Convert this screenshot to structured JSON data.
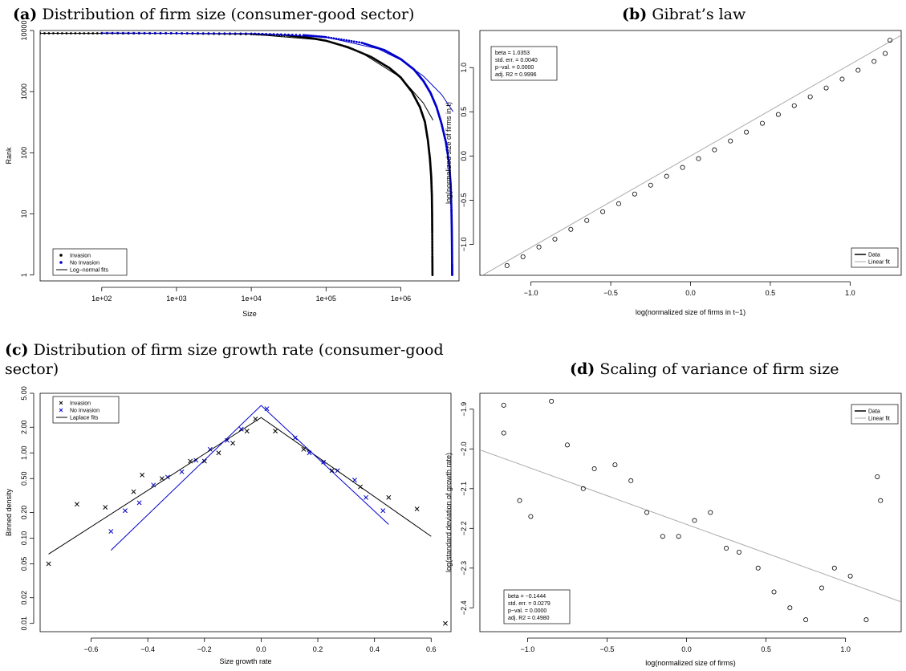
{
  "panels": [
    {
      "tag": "(a)",
      "caption": "Distribution of firm size (consumer-good sector)"
    },
    {
      "tag": "(b)",
      "caption": "Gibrat’s law"
    },
    {
      "tag": "(c)",
      "caption": "Distribution of firm size growth rate (consumer-good sector)"
    },
    {
      "tag": "(d)",
      "caption": "Scaling of variance of firm size"
    }
  ],
  "colors": {
    "invasion": "#000000",
    "no_invasion": "#0000cc",
    "linear_fit": "#aaaaaa"
  },
  "chart_data": [
    {
      "id": "a",
      "type": "scatter",
      "xlabel": "Size",
      "ylabel": "Rank",
      "xscale": "log",
      "yscale": "log",
      "xlim": [
        15,
        6000000
      ],
      "ylim": [
        0.8,
        10000
      ],
      "xticks": [
        100,
        1000,
        10000,
        100000,
        1000000
      ],
      "xtick_labels": [
        "1e+02",
        "1e+03",
        "1e+04",
        "1e+05",
        "1e+06"
      ],
      "yticks": [
        1,
        10,
        100,
        1000,
        10000
      ],
      "ytick_labels": [
        "1",
        "10",
        "100",
        "1000",
        "10000"
      ],
      "legend": {
        "position": "bottom-left",
        "entries": [
          "Invasion",
          "No Invasion",
          "Log−normal fits"
        ]
      },
      "series": [
        {
          "name": "Invasion",
          "color": "#000000",
          "marker": "dot",
          "x": [
            15,
            100,
            1000,
            10000,
            30000,
            60000,
            100000,
            200000,
            400000,
            700000,
            1000000,
            1400000,
            1800000,
            2100000,
            2300000,
            2450000,
            2550000,
            2600000,
            2620000,
            2630000,
            2640000,
            2650000
          ],
          "y": [
            9000,
            8990,
            8950,
            8700,
            8300,
            7600,
            6800,
            5300,
            3700,
            2450,
            1700,
            1000,
            560,
            320,
            160,
            80,
            40,
            20,
            10,
            5,
            2,
            1
          ]
        },
        {
          "name": "No Invasion",
          "color": "#0000cc",
          "marker": "dot",
          "x": [
            100,
            1000,
            10000,
            50000,
            100000,
            300000,
            600000,
            1000000,
            1500000,
            2000000,
            2500000,
            3000000,
            3500000,
            4000000,
            4400000,
            4650000,
            4750000,
            4800000,
            4830000,
            4850000,
            4860000
          ],
          "y": [
            9100,
            9050,
            8900,
            8400,
            7800,
            6300,
            4800,
            3400,
            2300,
            1500,
            950,
            560,
            300,
            150,
            70,
            30,
            12,
            6,
            3,
            1.5,
            1
          ]
        },
        {
          "name": "Log−normal fits",
          "color": "#000000",
          "marker": "line",
          "x": [
            15,
            1000,
            10000,
            100000,
            300000,
            1000000,
            2000000,
            2700000
          ],
          "y": [
            9000,
            8950,
            8700,
            6900,
            4300,
            1700,
            650,
            340
          ]
        },
        {
          "name": "Log−normal fits",
          "color": "#0000cc",
          "marker": "line",
          "x": [
            100,
            10000,
            100000,
            500000,
            1000000,
            2000000,
            3500000,
            5000000
          ],
          "y": [
            9100,
            8900,
            7800,
            5000,
            3300,
            1800,
            900,
            470
          ]
        }
      ]
    },
    {
      "id": "b",
      "type": "scatter",
      "xlabel": "log(normalized size of firms in t−1)",
      "ylabel": "log(normalized size of firms in t)",
      "xlim": [
        -1.32,
        1.32
      ],
      "ylim": [
        -1.35,
        1.42
      ],
      "xticks": [
        -1.0,
        -0.5,
        0.0,
        0.5,
        1.0
      ],
      "xtick_labels": [
        "−1.0",
        "−0.5",
        "0.0",
        "0.5",
        "1.0"
      ],
      "yticks": [
        -1.0,
        -0.5,
        0.0,
        0.5,
        1.0
      ],
      "ytick_labels": [
        "−1.0",
        "−0.5",
        "0.0",
        "0.5",
        "1.0"
      ],
      "stats": [
        "beta = 1.0353",
        "std. err. = 0.0040",
        "p−val. = 0.0000",
        "adj. R2 = 0.9996"
      ],
      "legend": {
        "position": "bottom-right",
        "entries": [
          "Data",
          "Linear fit"
        ]
      },
      "fit": {
        "intercept": 0.0,
        "slope": 1.0353
      },
      "series": [
        {
          "name": "Data",
          "marker": "circle",
          "x": [
            -1.15,
            -1.05,
            -0.95,
            -0.85,
            -0.75,
            -0.65,
            -0.55,
            -0.45,
            -0.35,
            -0.25,
            -0.15,
            -0.05,
            0.05,
            0.15,
            0.25,
            0.35,
            0.45,
            0.55,
            0.65,
            0.75,
            0.85,
            0.95,
            1.05,
            1.15,
            1.22,
            1.25
          ],
          "y": [
            -1.24,
            -1.14,
            -1.03,
            -0.94,
            -0.83,
            -0.73,
            -0.63,
            -0.54,
            -0.43,
            -0.33,
            -0.23,
            -0.13,
            -0.03,
            0.07,
            0.17,
            0.27,
            0.37,
            0.47,
            0.57,
            0.67,
            0.77,
            0.87,
            0.97,
            1.07,
            1.16,
            1.31
          ]
        }
      ]
    },
    {
      "id": "c",
      "type": "scatter",
      "xlabel": "Size growth rate",
      "ylabel": "Binned density",
      "yscale": "log",
      "xlim": [
        -0.78,
        0.67
      ],
      "ylim": [
        0.008,
        5.0
      ],
      "xticks": [
        -0.6,
        -0.4,
        -0.2,
        0.0,
        0.2,
        0.4,
        0.6
      ],
      "xtick_labels": [
        "−0.6",
        "−0.4",
        "−0.2",
        "0.0",
        "0.2",
        "0.4",
        "0.6"
      ],
      "yticks": [
        0.01,
        0.02,
        0.05,
        0.1,
        0.2,
        0.5,
        1.0,
        2.0,
        5.0
      ],
      "ytick_labels": [
        "0.01",
        "0.02",
        "0.05",
        "0.10",
        "0.20",
        "0.50",
        "1.00",
        "2.00",
        "5.00"
      ],
      "legend": {
        "position": "top-left",
        "entries": [
          "Invasion",
          "No Invasion",
          "Laplace fits"
        ]
      },
      "series": [
        {
          "name": "Invasion",
          "color": "#000000",
          "marker": "x",
          "x": [
            -0.75,
            -0.65,
            -0.55,
            -0.45,
            -0.42,
            -0.35,
            -0.25,
            -0.2,
            -0.15,
            -0.1,
            -0.05,
            -0.02,
            0.05,
            0.15,
            0.25,
            0.35,
            0.45,
            0.55,
            0.65
          ],
          "y": [
            0.05,
            0.25,
            0.23,
            0.35,
            0.55,
            0.5,
            0.8,
            0.8,
            1.0,
            1.3,
            1.8,
            2.5,
            1.8,
            1.1,
            0.62,
            0.4,
            0.3,
            0.22,
            0.01
          ]
        },
        {
          "name": "No Invasion",
          "color": "#0000cc",
          "marker": "x",
          "x": [
            -0.53,
            -0.48,
            -0.43,
            -0.38,
            -0.33,
            -0.28,
            -0.23,
            -0.18,
            -0.12,
            -0.07,
            0.02,
            0.12,
            0.17,
            0.22,
            0.27,
            0.33,
            0.37,
            0.43
          ],
          "y": [
            0.12,
            0.21,
            0.26,
            0.42,
            0.52,
            0.6,
            0.82,
            1.1,
            1.4,
            1.9,
            3.3,
            1.5,
            1.0,
            0.78,
            0.62,
            0.48,
            0.3,
            0.21
          ]
        },
        {
          "name": "Laplace fits",
          "color": "#000000",
          "marker": "line",
          "x": [
            -0.75,
            0.0,
            0.6
          ],
          "y": [
            0.065,
            2.6,
            0.105
          ]
        },
        {
          "name": "Laplace fits",
          "color": "#0000cc",
          "marker": "line",
          "x": [
            -0.53,
            0.0,
            0.45
          ],
          "y": [
            0.072,
            3.6,
            0.145
          ]
        }
      ]
    },
    {
      "id": "d",
      "type": "scatter",
      "xlabel": "log(normalized size of firms)",
      "ylabel": "log(standard deviation of growth rate)",
      "xlim": [
        -1.3,
        1.35
      ],
      "ylim": [
        -2.46,
        -1.86
      ],
      "xticks": [
        -1.0,
        -0.5,
        0.0,
        0.5,
        1.0
      ],
      "xtick_labels": [
        "−1.0",
        "−0.5",
        "0.0",
        "0.5",
        "1.0"
      ],
      "yticks": [
        -2.4,
        -2.3,
        -2.2,
        -2.1,
        -2.0,
        -1.9
      ],
      "ytick_labels": [
        "−2.4",
        "−2.3",
        "−2.2",
        "−2.1",
        "−2.0",
        "−1.9"
      ],
      "stats": [
        "beta = −0.1444",
        "std. err. = 0.0279",
        "p−val. = 0.0000",
        "adj. R2 = 0.4980"
      ],
      "legend": {
        "position": "top-right",
        "entries": [
          "Data",
          "Linear fit"
        ]
      },
      "fit": {
        "intercept": -2.19,
        "slope": -0.1444
      },
      "series": [
        {
          "name": "Data",
          "marker": "circle",
          "x": [
            -1.15,
            -1.15,
            -1.05,
            -0.98,
            -0.85,
            -0.75,
            -0.65,
            -0.58,
            -0.45,
            -0.35,
            -0.25,
            -0.15,
            -0.05,
            0.05,
            0.15,
            0.25,
            0.33,
            0.45,
            0.55,
            0.65,
            0.75,
            0.85,
            0.93,
            1.03,
            1.13,
            1.2,
            1.22
          ],
          "y": [
            -1.89,
            -1.96,
            -2.13,
            -2.17,
            -1.88,
            -1.99,
            -2.1,
            -2.05,
            -2.04,
            -2.08,
            -2.16,
            -2.22,
            -2.22,
            -2.18,
            -2.16,
            -2.25,
            -2.26,
            -2.3,
            -2.36,
            -2.4,
            -2.43,
            -2.35,
            -2.3,
            -2.32,
            -2.43,
            -2.07,
            -2.13
          ]
        }
      ]
    }
  ]
}
